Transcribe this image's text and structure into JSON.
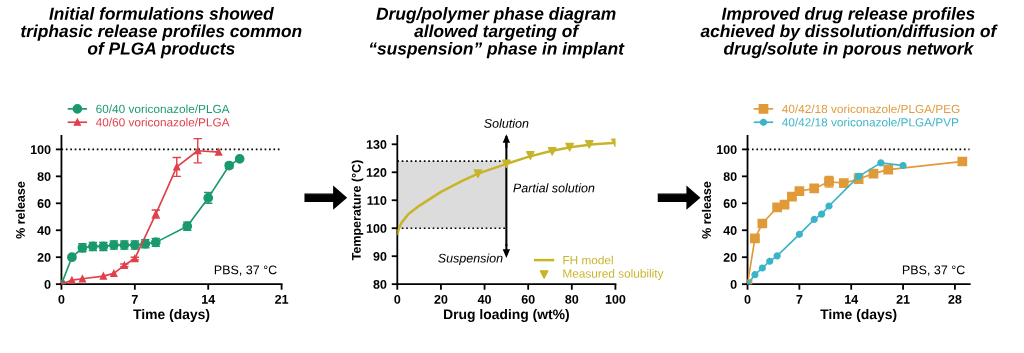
{
  "chart_data": [
    {
      "type": "line",
      "title": "Initial formulations showed\ntriphasic release profiles common\nof PLGA products",
      "xlabel": "Time (days)",
      "ylabel": "% release",
      "xlim": [
        0,
        21
      ],
      "xticks": [
        0,
        7,
        14,
        21
      ],
      "ylim": [
        0,
        110
      ],
      "yticks": [
        0,
        20,
        40,
        60,
        80,
        100
      ],
      "grid": false,
      "legend": "top left",
      "ref_lines": [
        {
          "axis": "y",
          "value": 100,
          "line_style": "dotted",
          "color": "#000000"
        }
      ],
      "annotations": [
        "PBS, 37 °C"
      ],
      "series": [
        {
          "name": "60/40 voriconazole/PLGA",
          "color": "#1a9a6c",
          "marker": "circle",
          "x": [
            0,
            1,
            2,
            3,
            4,
            5,
            6,
            7,
            8,
            9,
            12,
            14,
            16,
            17
          ],
          "values": [
            0,
            20,
            27,
            28,
            28,
            29,
            29,
            29,
            30,
            31,
            43,
            64,
            88,
            93
          ],
          "errors": [
            null,
            1,
            3,
            3,
            3,
            3,
            3,
            3,
            3,
            3,
            3,
            4,
            2,
            null
          ]
        },
        {
          "name": "40/60 voriconazole/PLGA",
          "color": "#e0404a",
          "marker": "triangle",
          "x": [
            0,
            1,
            2,
            4,
            5,
            6,
            7,
            9,
            11,
            13,
            15
          ],
          "values": [
            0,
            3,
            4,
            6,
            8,
            14,
            19,
            52,
            87,
            99,
            98
          ],
          "errors": [
            null,
            null,
            null,
            null,
            null,
            1,
            1,
            3,
            7,
            9,
            null
          ]
        }
      ]
    },
    {
      "type": "line",
      "title": "Drug/polymer phase diagram\nallowed targeting of\n“suspension” phase in implant",
      "xlabel": "Drug loading (wt%)",
      "ylabel": "Temperature (°C)",
      "xlim": [
        0,
        100
      ],
      "xticks": [
        0,
        20,
        40,
        60,
        80,
        100
      ],
      "ylim": [
        80,
        133
      ],
      "yticks": [
        80,
        90,
        100,
        110,
        120,
        130
      ],
      "grid": false,
      "legend": "bottom right",
      "bands": [
        {
          "axis": "x",
          "from": 0,
          "to": 50,
          "color": "#dcdcdc"
        }
      ],
      "ref_lines": [
        {
          "axis": "y",
          "value": 100,
          "line_style": "dotted",
          "color": "#000000"
        },
        {
          "axis": "y",
          "value": 124,
          "line_style": "dotted",
          "color": "#000000"
        },
        {
          "axis": "x",
          "value": 50,
          "line_style": "solid",
          "color": "#000000"
        }
      ],
      "annotations": [
        "Solution",
        "Partial solution",
        "Suspension"
      ],
      "series": [
        {
          "name": "FH model",
          "type": "line",
          "color": "#c8b428",
          "marker": "none",
          "x": [
            0,
            1,
            2,
            5,
            10,
            20,
            30,
            37,
            50,
            60,
            70,
            80,
            90,
            100
          ],
          "values": [
            98,
            100.5,
            102,
            105,
            108,
            113,
            117,
            119.5,
            123,
            125.5,
            127.5,
            129,
            130,
            130.5
          ]
        },
        {
          "name": "Measured solubility",
          "type": "scatter",
          "color": "#c8b428",
          "marker": "triangle",
          "x": [
            37,
            50,
            61,
            71,
            79,
            88,
            100
          ],
          "values": [
            119.5,
            123,
            126,
            127.5,
            129,
            130,
            130.5
          ]
        }
      ]
    },
    {
      "type": "line",
      "title": "Improved drug release profiles\nachieved by dissolution/diffusion of\ndrug/solute in porous network",
      "xlabel": "Time (days)",
      "ylabel": "% release",
      "xlim": [
        0,
        30
      ],
      "xticks": [
        0,
        7,
        14,
        21,
        28
      ],
      "ylim": [
        0,
        110
      ],
      "yticks": [
        0,
        20,
        40,
        60,
        80,
        100
      ],
      "grid": false,
      "legend": "top left",
      "ref_lines": [
        {
          "axis": "y",
          "value": 100,
          "line_style": "dotted",
          "color": "#000000"
        }
      ],
      "annotations": [
        "PBS, 37 °C"
      ],
      "series": [
        {
          "name": "40/42/18 voriconazole/PLGA/PEG",
          "color": "#e09a38",
          "marker": "square",
          "x": [
            0,
            1,
            2,
            4,
            5,
            6,
            7,
            9,
            11,
            13,
            15,
            17,
            19,
            29
          ],
          "values": [
            0,
            34,
            45,
            57,
            59,
            65,
            69,
            71,
            76,
            75,
            78,
            82,
            85,
            91
          ],
          "errors": [
            null,
            2,
            1,
            1,
            1,
            1,
            1,
            1,
            4,
            1,
            1,
            1,
            1,
            1
          ]
        },
        {
          "name": "40/42/18 voriconazole/PLGA/PVP",
          "color": "#3ab4c8",
          "marker": "circle",
          "x": [
            0,
            1,
            2,
            3,
            4,
            7,
            9,
            10,
            11,
            15,
            18,
            21
          ],
          "values": [
            0,
            7,
            12,
            17,
            21,
            37,
            48,
            52,
            58,
            80,
            90,
            88
          ],
          "errors": [
            null,
            null,
            null,
            null,
            null,
            null,
            null,
            null,
            null,
            2,
            null,
            null
          ]
        }
      ]
    }
  ]
}
